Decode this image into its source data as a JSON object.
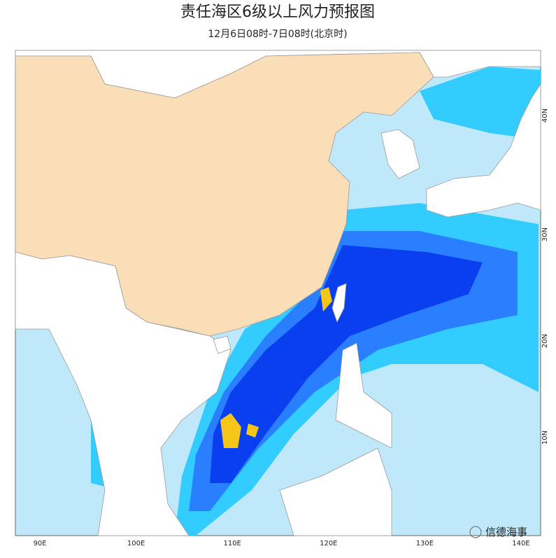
{
  "header": {
    "title": "责任海区6级以上风力预报图",
    "subtitle": "12月6日08时-7日08时(北京时)"
  },
  "map": {
    "lon_labels": [
      "90E",
      "100E",
      "110E",
      "120E",
      "130E",
      "140E"
    ],
    "lat_labels": [
      "10N",
      "20N",
      "30N",
      "40N"
    ]
  },
  "watermark": "信德海事"
}
